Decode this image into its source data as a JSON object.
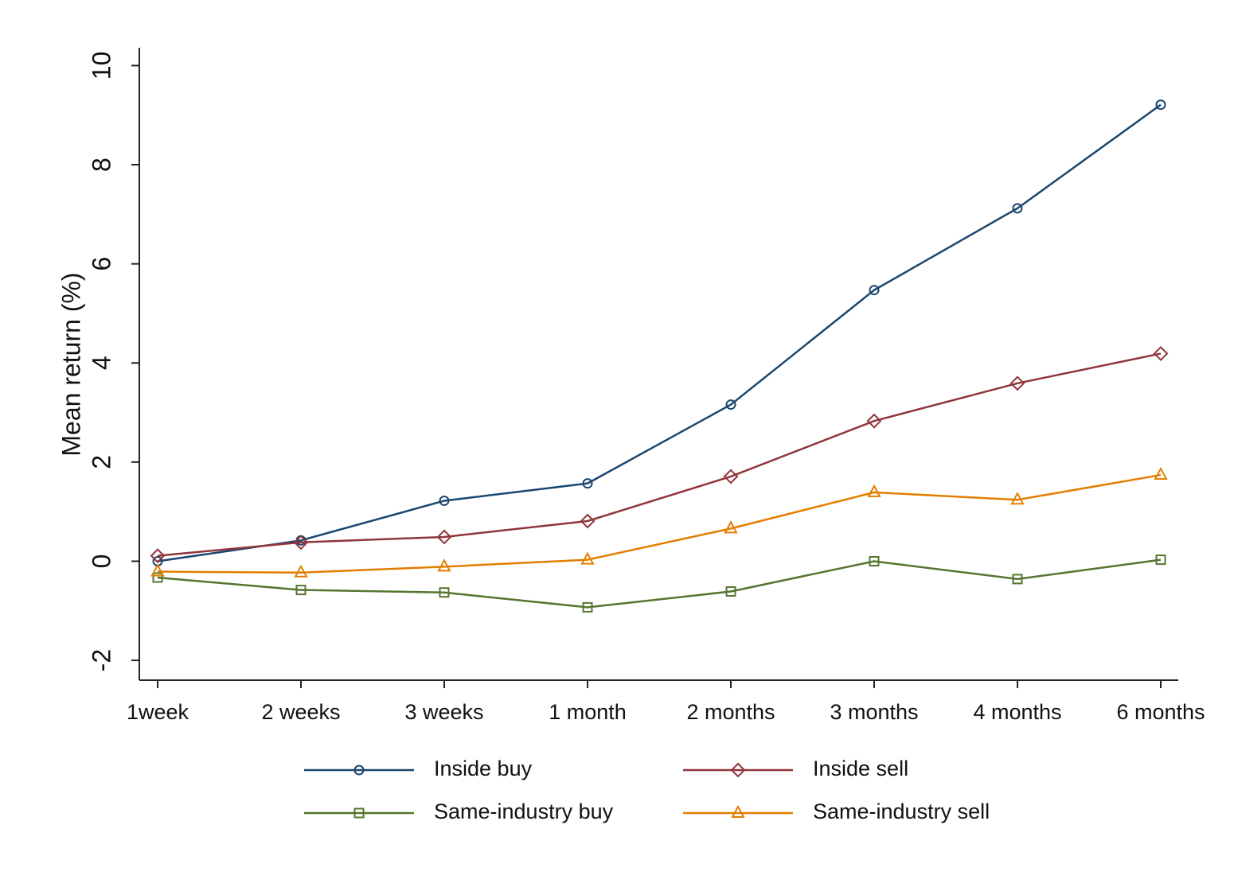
{
  "chart_data": {
    "type": "line",
    "y_label": "Mean return (%)",
    "categories": [
      "1week",
      "2 weeks",
      "3 weeks",
      "1 month",
      "2 months",
      "3 months",
      "4 months",
      "6 months"
    ],
    "series": [
      {
        "name": "Inside buy",
        "color": "#1a476f",
        "marker": "circle",
        "values": [
          0.0,
          0.42,
          1.22,
          1.57,
          3.16,
          5.47,
          7.12,
          9.21
        ]
      },
      {
        "name": "Inside sell",
        "color": "#90353b",
        "marker": "diamond",
        "values": [
          0.11,
          0.38,
          0.49,
          0.81,
          1.71,
          2.83,
          3.59,
          4.19
        ]
      },
      {
        "name": "Same-industry buy",
        "color": "#55752f",
        "marker": "square",
        "values": [
          -0.33,
          -0.58,
          -0.63,
          -0.93,
          -0.61,
          0.0,
          -0.36,
          0.03
        ]
      },
      {
        "name": "Same-industry sell",
        "color": "#e37e00",
        "marker": "triangle",
        "values": [
          -0.21,
          -0.23,
          -0.11,
          0.03,
          0.66,
          1.39,
          1.24,
          1.74
        ]
      }
    ],
    "ylim": [
      -2.4,
      10.36
    ],
    "yticks": [
      -2,
      0,
      2,
      4,
      6,
      8,
      10
    ],
    "grid": false,
    "legend": "bottom"
  }
}
